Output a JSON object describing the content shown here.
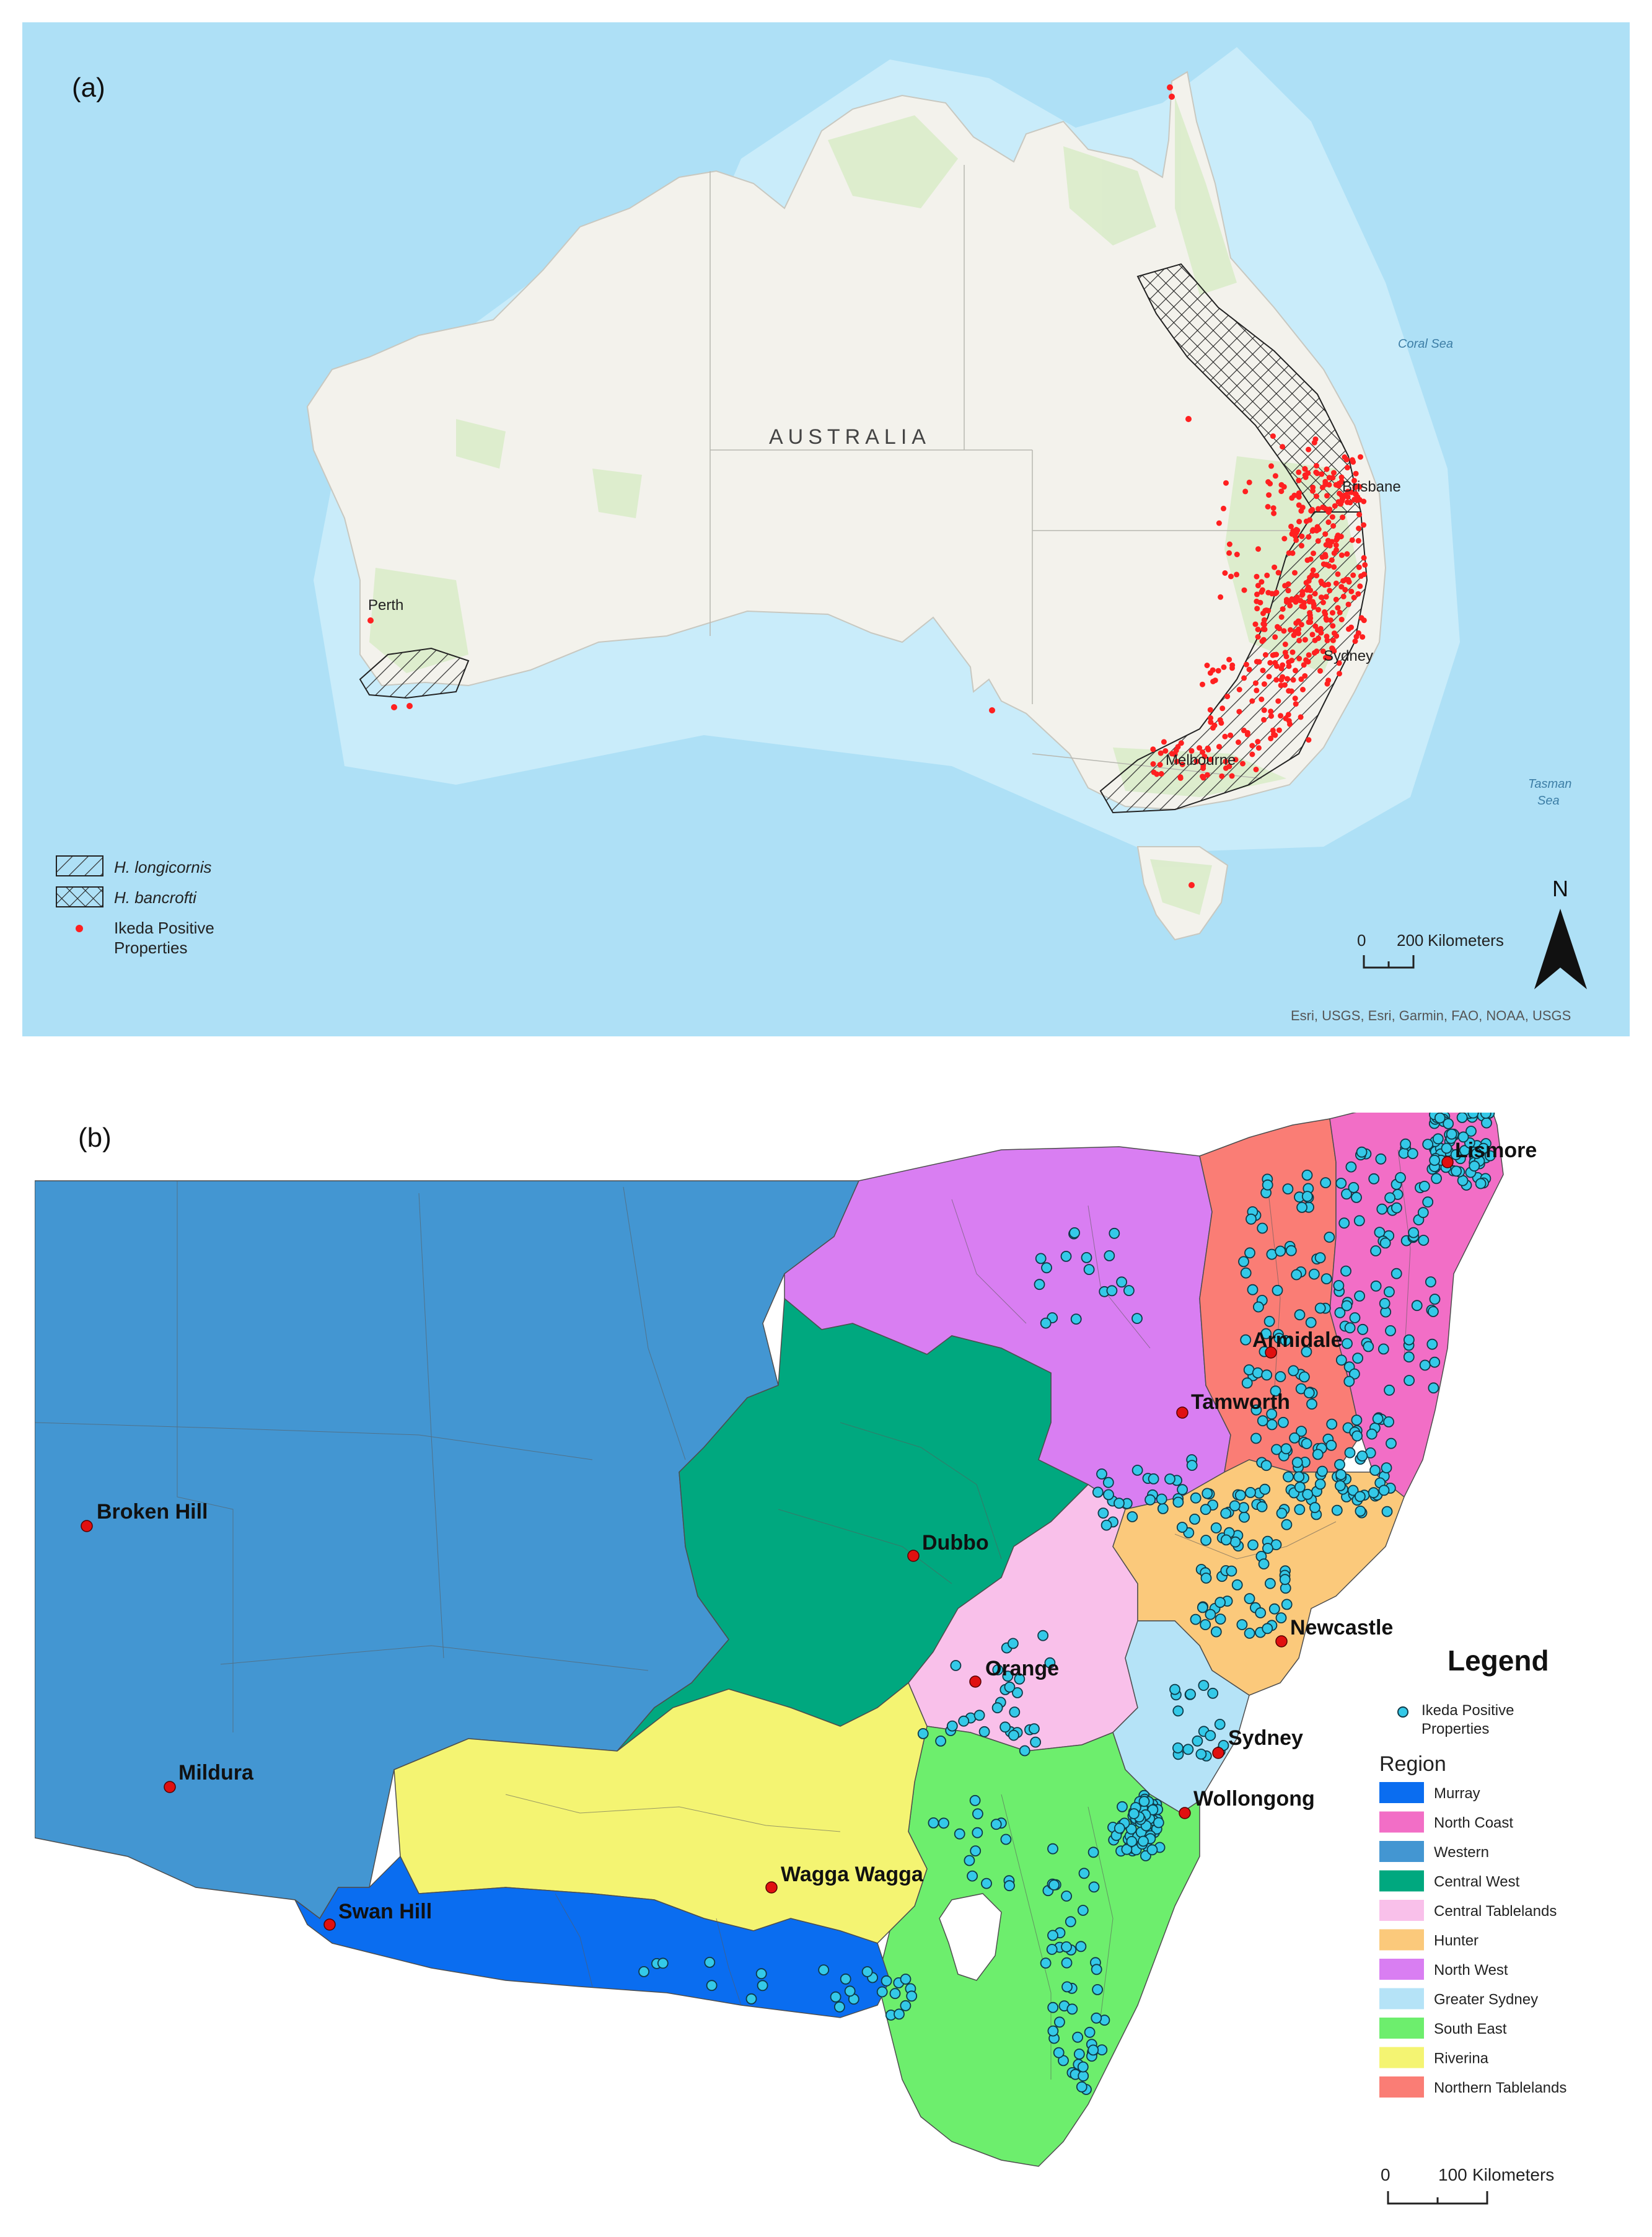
{
  "panel_a": {
    "label": "(a)",
    "country_label": "AUSTRALIA",
    "sea_labels": [
      "Coral Sea",
      "Tasman",
      "Sea"
    ],
    "cities": [
      "Perth",
      "Brisbane",
      "Sydney",
      "Melbourne"
    ],
    "legend": {
      "items": [
        "H. longicornis",
        "H. bancrofti",
        "Ikeda Positive",
        "Properties"
      ]
    },
    "scale_bar": {
      "zero": "0",
      "value": "200",
      "unit": "Kilometers"
    },
    "north_label": "N",
    "attribution": "Esri, USGS, Esri, Garmin, FAO, NOAA, USGS",
    "colors": {
      "ocean": "#aee0f6",
      "land": "#f3f2ec",
      "vegetation": "#d8ecc8",
      "points": "#ff2020"
    }
  },
  "panel_b": {
    "label": "(b)",
    "cities": [
      "Lismore",
      "Armidale",
      "Tamworth",
      "Broken Hill",
      "Dubbo",
      "Newcastle",
      "Orange",
      "Sydney",
      "Mildura",
      "Wollongong",
      "Wagga Wagga",
      "Swan Hill"
    ],
    "legend": {
      "title": "Legend",
      "point_label_1": "Ikeda Positive",
      "point_label_2": "Properties",
      "region_title": "Region",
      "regions": [
        {
          "name": "Murray",
          "color": "#0a6df0"
        },
        {
          "name": "North Coast",
          "color": "#f26ec6"
        },
        {
          "name": "Western",
          "color": "#4396d2"
        },
        {
          "name": "Central West",
          "color": "#00a87f"
        },
        {
          "name": "Central Tablelands",
          "color": "#f9c0ea"
        },
        {
          "name": "Hunter",
          "color": "#fbc97b"
        },
        {
          "name": "North West",
          "color": "#d97ef2"
        },
        {
          "name": "Greater Sydney",
          "color": "#b5e3f7"
        },
        {
          "name": "South East",
          "color": "#6dee6d"
        },
        {
          "name": "Riverina",
          "color": "#f4f472"
        },
        {
          "name": "Northern Tablelands",
          "color": "#fa7d75"
        }
      ]
    },
    "scale_bar": {
      "zero": "0",
      "value": "100",
      "unit": "Kilometers"
    },
    "colors": {
      "points": "#34c9e8",
      "cities": "#e01010"
    }
  }
}
